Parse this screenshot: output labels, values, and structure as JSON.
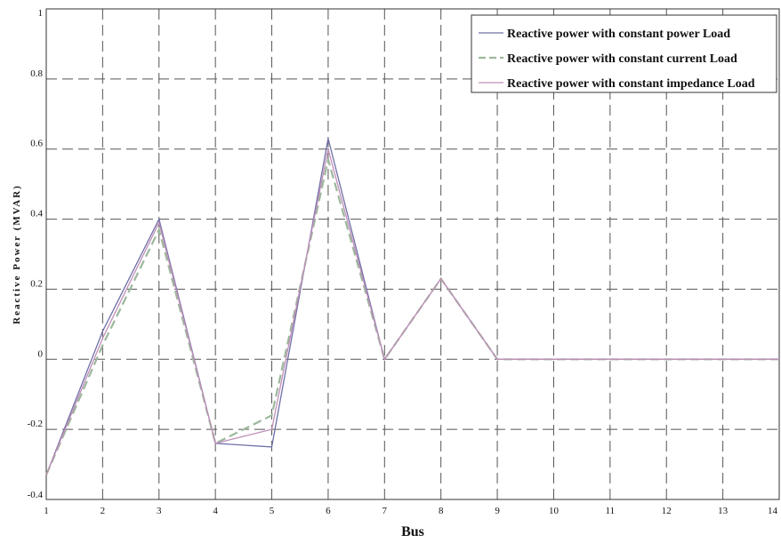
{
  "chart_data": {
    "type": "line",
    "title": "",
    "xlabel": "Bus",
    "ylabel": "Reactive Power (MVAR)",
    "xlim": [
      1,
      14
    ],
    "ylim": [
      -0.4,
      1
    ],
    "x": [
      1,
      2,
      3,
      4,
      5,
      6,
      7,
      8,
      9,
      10,
      11,
      12,
      13,
      14
    ],
    "x_tick_labels": [
      "1",
      "2",
      "3",
      "4",
      "5",
      "6",
      "7",
      "8",
      "9",
      "10",
      "11",
      "12",
      "13",
      "14"
    ],
    "y_ticks": [
      -0.4,
      -0.2,
      0,
      0.2,
      0.4,
      0.6,
      0.8,
      1
    ],
    "y_tick_labels": [
      "-0.4",
      "-0.2",
      "0",
      "0.2",
      "0.4",
      "0.6",
      "0.8",
      "1"
    ],
    "grid": true,
    "legend_position": "top-right",
    "series": [
      {
        "name": "Reactive power with constant power Load",
        "color": "#7070a8",
        "dash": "solid",
        "values": [
          -0.33,
          0.08,
          0.4,
          -0.24,
          -0.25,
          0.63,
          0.0,
          0.23,
          0.0,
          0.0,
          0.0,
          0.0,
          0.0,
          0.0
        ]
      },
      {
        "name": "Reactive power with constant current Load",
        "color": "#9db89d",
        "dash": "dashed",
        "values": [
          -0.33,
          0.04,
          0.37,
          -0.24,
          -0.16,
          0.57,
          0.0,
          0.23,
          0.0,
          0.0,
          0.0,
          0.0,
          0.0,
          0.0
        ]
      },
      {
        "name": "Reactive power with constant impedance Load",
        "color": "#c090b8",
        "dash": "solid",
        "values": [
          -0.33,
          0.06,
          0.39,
          -0.24,
          -0.2,
          0.6,
          0.0,
          0.23,
          0.0,
          0.0,
          0.0,
          0.0,
          0.0,
          0.0
        ]
      }
    ]
  }
}
